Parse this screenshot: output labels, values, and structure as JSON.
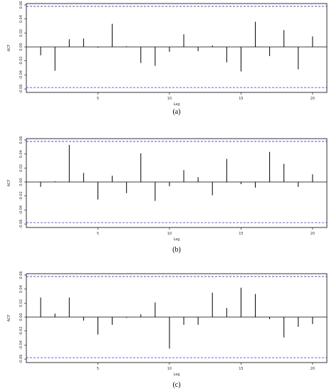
{
  "captions": [
    "(a)",
    "(b)",
    "(c)"
  ],
  "chart_data": [
    {
      "type": "bar",
      "panel": "(a)",
      "xlabel": "Lag",
      "ylabel": "ACF",
      "xlim": [
        0,
        21
      ],
      "ylim": [
        -0.065,
        0.062
      ],
      "xticks": [
        5,
        10,
        15,
        20
      ],
      "yticks": [
        -0.06,
        -0.04,
        -0.02,
        0.0,
        0.02,
        0.04,
        0.06
      ],
      "confidence_band": 0.058,
      "lags": [
        1,
        2,
        3,
        4,
        5,
        6,
        7,
        8,
        9,
        10,
        11,
        12,
        13,
        14,
        15,
        16,
        17,
        18,
        19,
        20
      ],
      "values": [
        -0.012,
        -0.034,
        0.011,
        0.012,
        -0.001,
        0.033,
        0.001,
        -0.023,
        -0.027,
        -0.007,
        0.018,
        -0.006,
        0.002,
        -0.022,
        -0.035,
        0.036,
        -0.013,
        0.024,
        -0.032,
        0.015
      ]
    },
    {
      "type": "bar",
      "panel": "(b)",
      "xlabel": "Lag",
      "ylabel": "ACF",
      "xlim": [
        0,
        21
      ],
      "ylim": [
        -0.065,
        0.062
      ],
      "xticks": [
        5,
        10,
        15,
        20
      ],
      "yticks": [
        -0.06,
        -0.04,
        -0.02,
        0.0,
        0.02,
        0.04,
        0.06
      ],
      "confidence_band": 0.058,
      "lags": [
        1,
        2,
        3,
        4,
        5,
        6,
        7,
        8,
        9,
        10,
        11,
        12,
        13,
        14,
        15,
        16,
        17,
        18,
        19,
        20
      ],
      "values": [
        -0.007,
        0.001,
        0.053,
        0.013,
        -0.025,
        0.009,
        -0.016,
        0.041,
        -0.027,
        -0.006,
        0.017,
        0.007,
        -0.019,
        0.033,
        -0.003,
        -0.008,
        0.043,
        0.026,
        -0.007,
        0.011
      ]
    },
    {
      "type": "bar",
      "panel": "(c)",
      "xlabel": "Lag",
      "ylabel": "ACF",
      "xlim": [
        0,
        21
      ],
      "ylim": [
        -0.065,
        0.062
      ],
      "xticks": [
        5,
        10,
        15,
        20
      ],
      "yticks": [
        -0.06,
        -0.04,
        -0.02,
        0.0,
        0.02,
        0.04,
        0.06
      ],
      "confidence_band": 0.058,
      "lags": [
        1,
        2,
        3,
        4,
        5,
        6,
        7,
        8,
        9,
        10,
        11,
        12,
        13,
        14,
        15,
        16,
        17,
        18,
        19,
        20
      ],
      "values": [
        0.028,
        0.005,
        0.028,
        -0.005,
        -0.025,
        -0.011,
        -0.001,
        0.004,
        0.021,
        -0.045,
        -0.011,
        -0.011,
        0.035,
        0.013,
        0.042,
        0.033,
        -0.003,
        -0.029,
        -0.014,
        -0.01
      ]
    }
  ]
}
